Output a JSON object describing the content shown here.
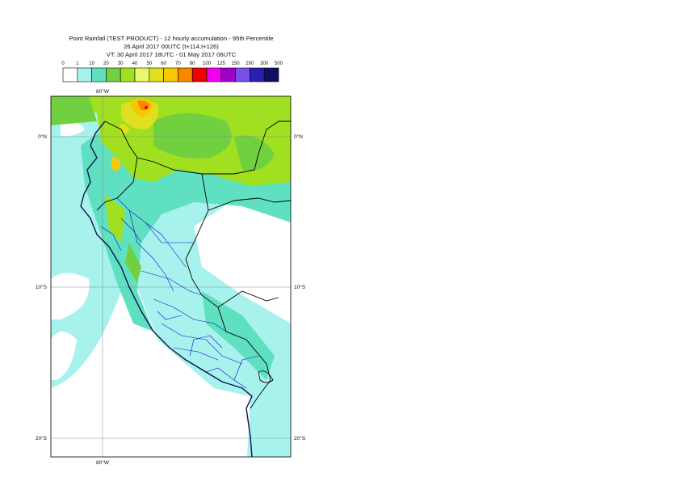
{
  "header": {
    "line1": "Point Rainfall (TEST PRODUCT) - 12 hourly accumulation - 95th Percentile",
    "line2": "26 April 2017 00UTC (t+114,t+126)",
    "line3": "VT: 30 April 2017 18UTC - 01 May 2017 06UTC"
  },
  "legend": {
    "thresholds": [
      "0",
      "1",
      "10",
      "20",
      "30",
      "40",
      "50",
      "60",
      "70",
      "80",
      "100",
      "125",
      "150",
      "200",
      "300",
      "500"
    ],
    "colors": [
      "#ffffff",
      "#a8f2ee",
      "#5fe0c0",
      "#70d040",
      "#a0e020",
      "#e8f870",
      "#e0e020",
      "#f8c800",
      "#f88800",
      "#f00000",
      "#f000f0",
      "#a000c8",
      "#7850e8",
      "#2820b0",
      "#101060"
    ]
  },
  "map": {
    "lon_labels": [
      "80°W",
      "80°W"
    ],
    "lat_labels": [
      "0°N",
      "10°S",
      "20°S"
    ],
    "colors": {
      "light": "#a8f2ee",
      "teal": "#5fe0c0",
      "green": "#70d040",
      "lime": "#a0e020",
      "yellow": "#e0e020",
      "orange": "#f8c800",
      "dark_orange": "#f88800",
      "red": "#f00000",
      "coast": "#101050",
      "border": "#000000",
      "region": "#1010d0"
    }
  }
}
